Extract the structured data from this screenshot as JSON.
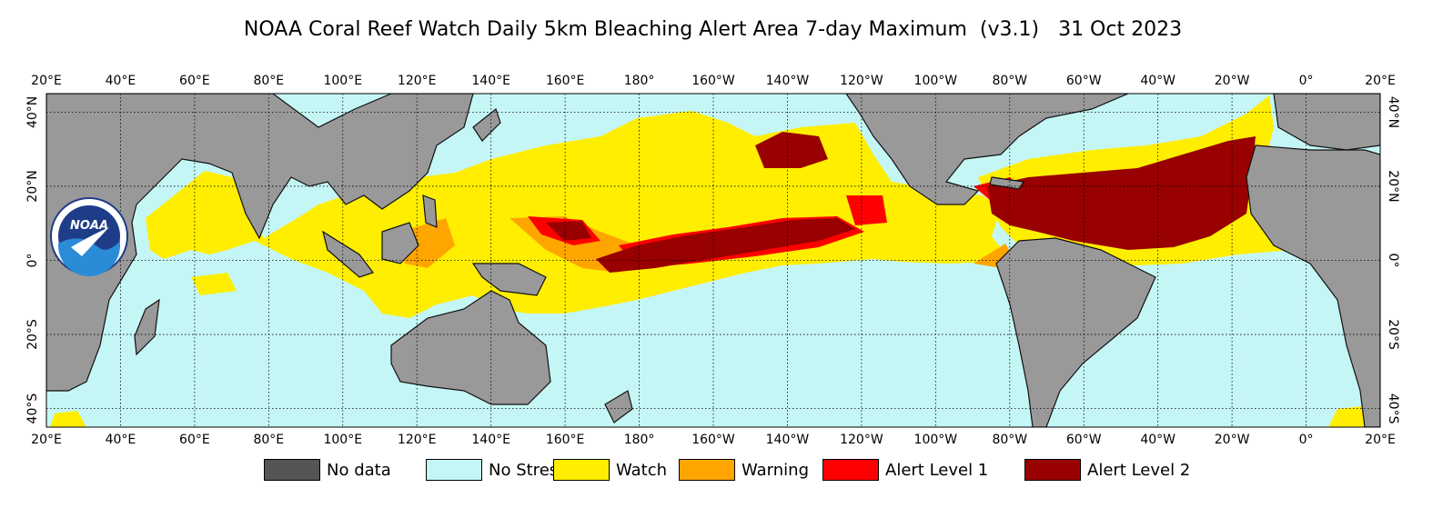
{
  "title": "NOAA Coral Reef Watch Daily 5km Bleaching Alert Area 7-day Maximum  (v3.1)   31 Oct 2023",
  "logo": {
    "name": "noaa-logo",
    "text": "NOAA"
  },
  "colors": {
    "ocean_no_stress": "#c5f6f6",
    "land": "#999999",
    "no_data": "#555555",
    "watch": "#ffee00",
    "warning": "#ffa500",
    "alert1": "#ff0000",
    "alert2": "#990000"
  },
  "map": {
    "longitude_ticks": [
      "20°E",
      "40°E",
      "60°E",
      "80°E",
      "100°E",
      "120°E",
      "140°E",
      "160°E",
      "180°",
      "160°W",
      "140°W",
      "120°W",
      "100°W",
      "80°W",
      "60°W",
      "40°W",
      "20°W",
      "0°",
      "20°E"
    ],
    "latitude_ticks_left": [
      "40°N",
      "20°N",
      "0°",
      "20°S",
      "40°S"
    ],
    "latitude_ticks_right": [
      "40°N",
      "20°N",
      "0°",
      "20°S",
      "40°S"
    ],
    "lon_range": [
      20,
      380
    ],
    "lat_range": [
      -45,
      45
    ],
    "gridlines": true,
    "gridline_style": "dotted"
  },
  "legend": [
    {
      "label": "No data",
      "color": "#555555"
    },
    {
      "label": "No Stress",
      "color": "#c5f6f6"
    },
    {
      "label": "Watch",
      "color": "#ffee00"
    },
    {
      "label": "Warning",
      "color": "#ffa500"
    },
    {
      "label": "Alert Level 1",
      "color": "#ff0000"
    },
    {
      "label": "Alert Level 2",
      "color": "#990000"
    }
  ]
}
